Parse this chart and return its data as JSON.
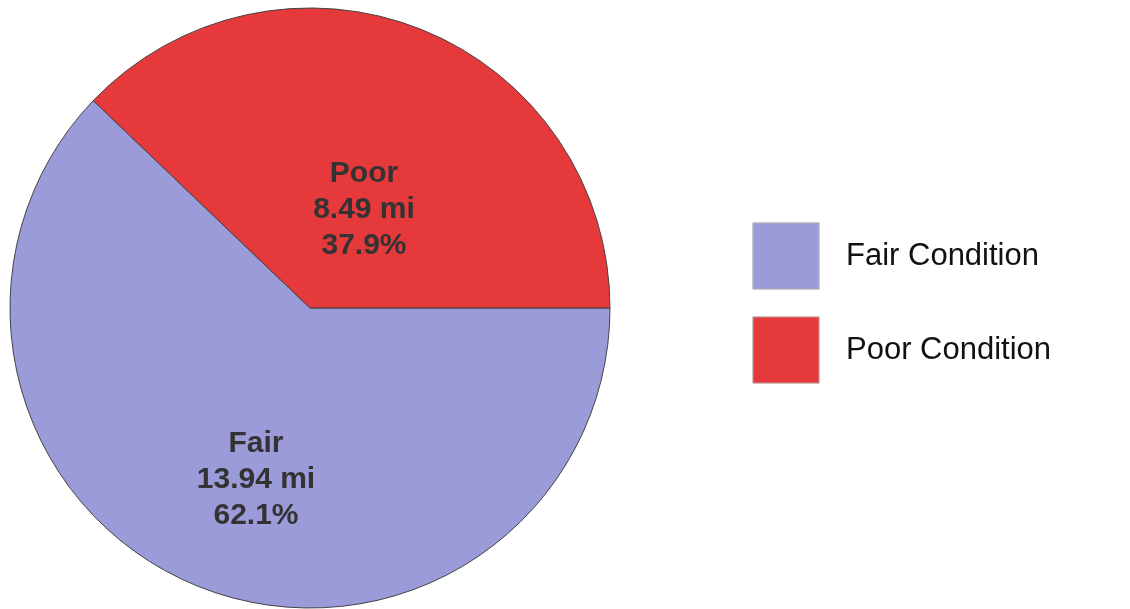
{
  "chart_data": {
    "type": "pie",
    "categories": [
      "Fair Condition",
      "Poor Condition"
    ],
    "values": [
      13.94,
      8.49
    ],
    "colors": [
      "#9b9bd9",
      "#e6393b"
    ],
    "value_labels": [
      "Fair\n13.94 mi\n62.1%",
      "Poor\n8.49 mi\n37.9%"
    ],
    "legend": "right"
  }
}
